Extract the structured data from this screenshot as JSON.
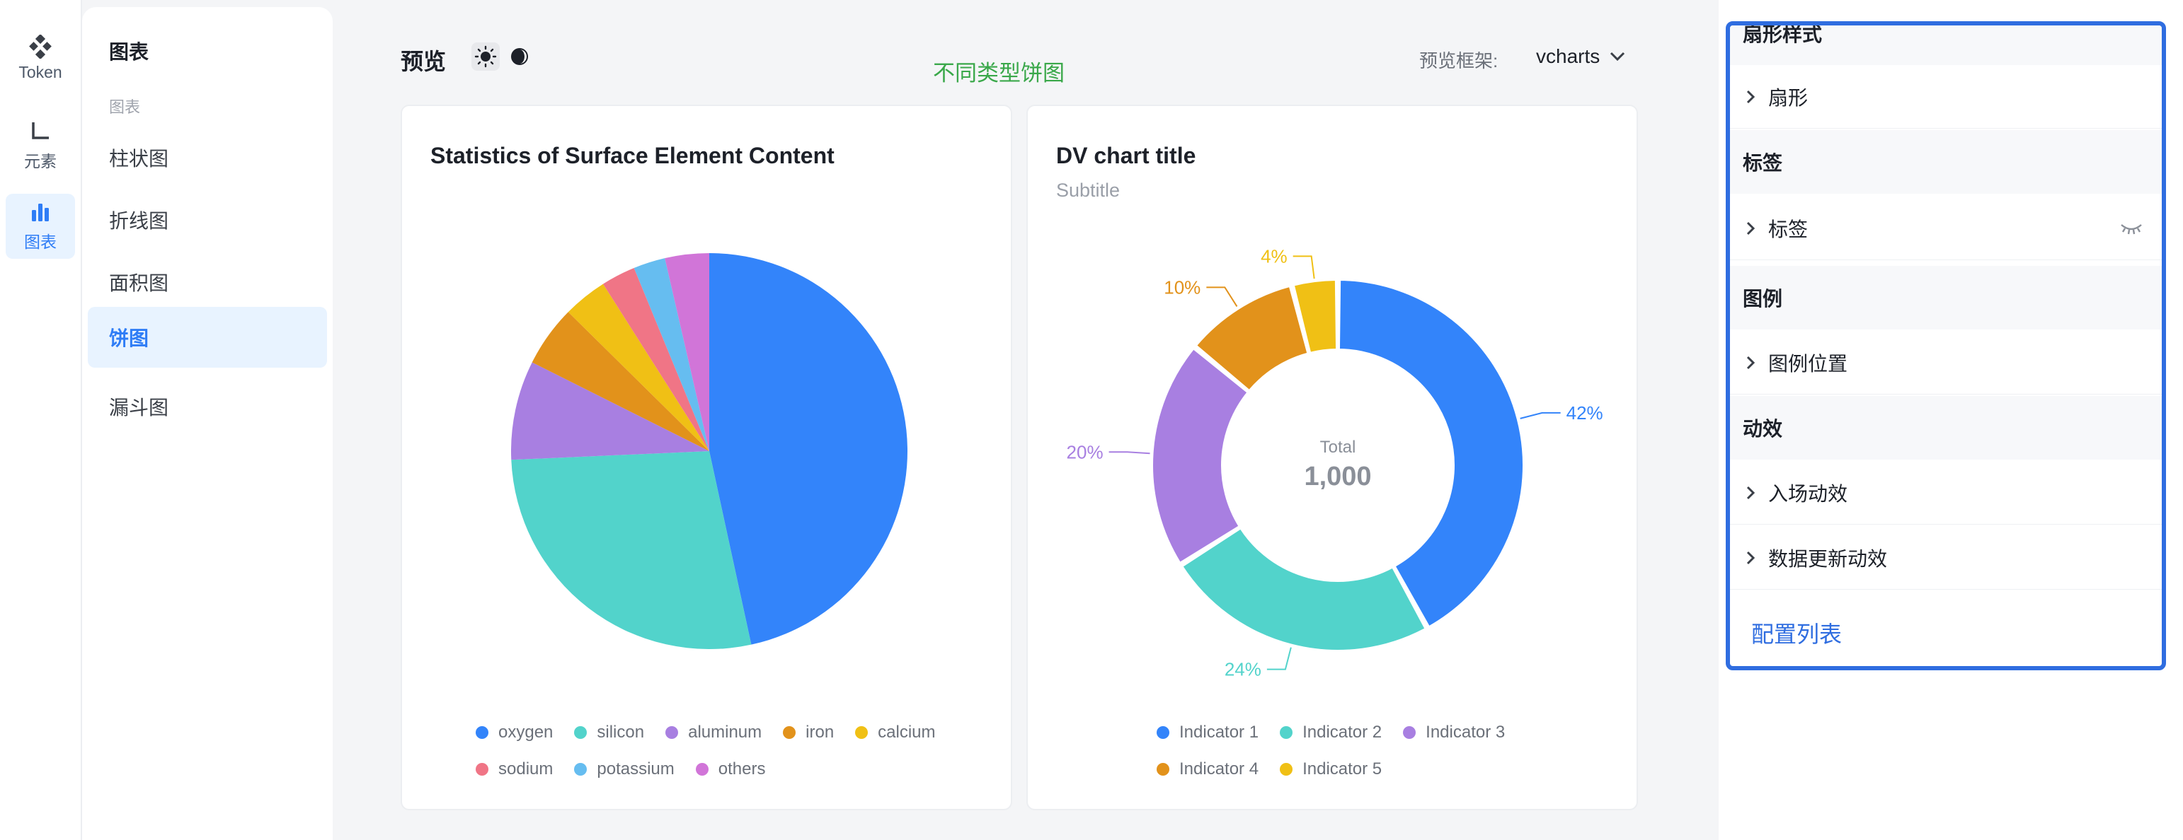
{
  "rail": [
    {
      "label": "Token",
      "icon": "token-icon"
    },
    {
      "label": "元素",
      "icon": "element-icon"
    },
    {
      "label": "图表",
      "icon": "chart-icon",
      "active": true
    }
  ],
  "nav": {
    "title": "图表",
    "group": "图表",
    "items": [
      {
        "label": "柱状图"
      },
      {
        "label": "折线图"
      },
      {
        "label": "面积图"
      },
      {
        "label": "饼图",
        "active": true
      },
      {
        "label": "漏斗图"
      }
    ]
  },
  "preview": {
    "label": "预览",
    "annotation": "不同类型饼图",
    "framework_label": "预览框架:",
    "framework_value": "vcharts"
  },
  "chart_data": [
    {
      "type": "pie",
      "title": "Statistics of Surface Element Content",
      "categories": [
        "oxygen",
        "silicon",
        "aluminum",
        "iron",
        "calcium",
        "sodium",
        "potassium",
        "others"
      ],
      "values": [
        46.6,
        27.7,
        8.1,
        5.0,
        3.6,
        2.8,
        2.6,
        3.6
      ],
      "colors": [
        "#3384fa",
        "#52d3cb",
        "#a87fe1",
        "#e2921b",
        "#f0c015",
        "#f07586",
        "#66bdf0",
        "#d175d8"
      ],
      "legend": "bottom"
    },
    {
      "type": "pie",
      "title": "DV chart title",
      "subtitle": "Subtitle",
      "categories": [
        "Indicator 1",
        "Indicator 2",
        "Indicator 3",
        "Indicator 4",
        "Indicator 5"
      ],
      "values": [
        420,
        240,
        200,
        100,
        40
      ],
      "percent_labels": [
        "42%",
        "24%",
        "20%",
        "10%",
        "4%"
      ],
      "colors": [
        "#3384fa",
        "#52d3cb",
        "#a87fe1",
        "#e2921b",
        "#f0c015"
      ],
      "center_label": "Total",
      "center_value": "1,000",
      "legend": "bottom"
    }
  ],
  "config": {
    "sections": [
      {
        "title": "扇形样式",
        "items": [
          {
            "label": "扇形"
          }
        ]
      },
      {
        "title": "标签",
        "items": [
          {
            "label": "标签",
            "icon": "eye-off-icon"
          }
        ]
      },
      {
        "title": "图例",
        "items": [
          {
            "label": "图例位置"
          }
        ]
      },
      {
        "title": "动效",
        "items": [
          {
            "label": "入场动效"
          },
          {
            "label": "数据更新动效"
          }
        ]
      }
    ],
    "link": "配置列表"
  }
}
